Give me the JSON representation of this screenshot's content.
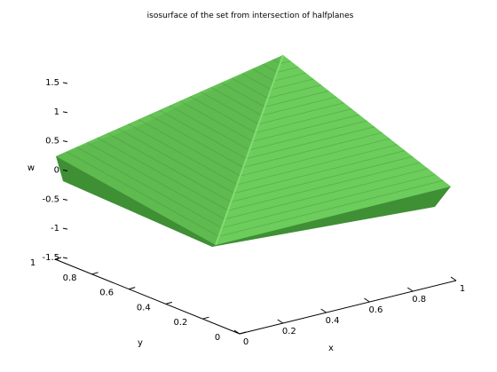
{
  "chart_data": {
    "type": "surface3d",
    "title": "isosurface of the set from intersection of halfplanes",
    "xlabel": "x",
    "ylabel": "y",
    "zlabel": "w",
    "xlim": [
      0,
      1
    ],
    "ylim": [
      0,
      1
    ],
    "zlim": [
      -1.5,
      1.8
    ],
    "x_ticks": [
      "0",
      "0.2",
      "0.4",
      "0.6",
      "0.8",
      "1"
    ],
    "x_tick_values": [
      0,
      0.2,
      0.4,
      0.6,
      0.8,
      1
    ],
    "y_ticks": [
      "0",
      "0.2",
      "0.4",
      "0.6",
      "0.8",
      "1"
    ],
    "y_tick_values": [
      0,
      0.2,
      0.4,
      0.6,
      0.8,
      1
    ],
    "z_ticks": [
      "-1.5",
      "-1",
      "-0.5",
      "0",
      "0.5",
      "1",
      "1.5"
    ],
    "z_tick_values": [
      -1.5,
      -1,
      -0.5,
      0,
      0.5,
      1,
      1.5
    ],
    "surface": {
      "apex": {
        "x": 0.5,
        "y": 0.5,
        "w": 1.8
      },
      "corners": [
        {
          "x": 0,
          "y": 0,
          "w": -1.2
        },
        {
          "x": 1,
          "y": 0,
          "w": -0.3
        },
        {
          "x": 1,
          "y": 1,
          "w": 0
        },
        {
          "x": 0,
          "y": 1,
          "w": 0
        }
      ],
      "color": "#6ccc5c",
      "edge_color": "#3e8a32"
    },
    "grid": false,
    "box": false
  }
}
